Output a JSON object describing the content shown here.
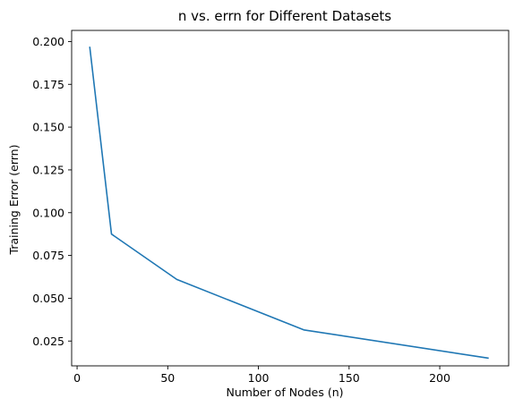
{
  "chart_data": {
    "type": "line",
    "title": "n vs. errn for Different Datasets",
    "xlabel": "Number of Nodes (n)",
    "ylabel": "Training Error (errn)",
    "xlim": [
      -3,
      238
    ],
    "ylim": [
      0.0105,
      0.2065
    ],
    "xticks": [
      0,
      50,
      100,
      150,
      200
    ],
    "xtick_labels": [
      "0",
      "50",
      "100",
      "150",
      "200"
    ],
    "yticks": [
      0.025,
      0.05,
      0.075,
      0.1,
      0.125,
      0.15,
      0.175,
      0.2
    ],
    "ytick_labels": [
      "0.025",
      "0.050",
      "0.075",
      "0.100",
      "0.125",
      "0.150",
      "0.175",
      "0.200"
    ],
    "grid": false,
    "line_color": "#1f77b4",
    "series": [
      {
        "x": [
          7,
          19,
          55,
          125,
          227
        ],
        "y": [
          0.197,
          0.0875,
          0.061,
          0.0315,
          0.015
        ]
      }
    ]
  }
}
